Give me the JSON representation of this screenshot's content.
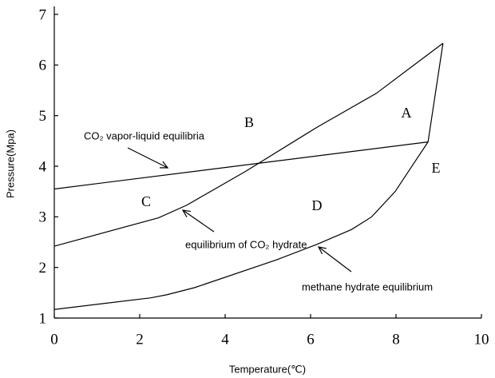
{
  "chart_data": {
    "type": "line",
    "xlabel": "Temperature(℃)",
    "ylabel": "Pressure(Mpa)",
    "xlim": [
      0,
      10
    ],
    "xticks": [
      0,
      2,
      4,
      6,
      8,
      10
    ],
    "ylim": [
      1,
      7
    ],
    "yticks": [
      1,
      2,
      3,
      4,
      5,
      6,
      7
    ],
    "color": "#000000",
    "series": [
      {
        "name": "CO₂ vapor-liquid equilibria",
        "x": [
          0,
          8.75
        ],
        "values": [
          3.55,
          4.48
        ]
      },
      {
        "name": "equilibrium of CO₂ hydrate",
        "x": [
          0,
          2.44,
          3.1,
          4.48,
          6.15,
          7.54,
          9.1
        ],
        "values": [
          2.42,
          2.98,
          3.23,
          3.9,
          4.77,
          5.44,
          6.43
        ]
      },
      {
        "name": "methane hydrate equilibrium",
        "x": [
          0,
          2.26,
          2.63,
          3.28,
          5.2,
          6.13,
          6.96,
          7.43,
          7.98,
          8.75,
          9.1
        ],
        "values": [
          1.17,
          1.4,
          1.46,
          1.6,
          2.15,
          2.45,
          2.75,
          3.0,
          3.5,
          4.48,
          6.43
        ]
      }
    ],
    "annotations": [
      "A",
      "B",
      "C",
      "D",
      "E"
    ]
  }
}
